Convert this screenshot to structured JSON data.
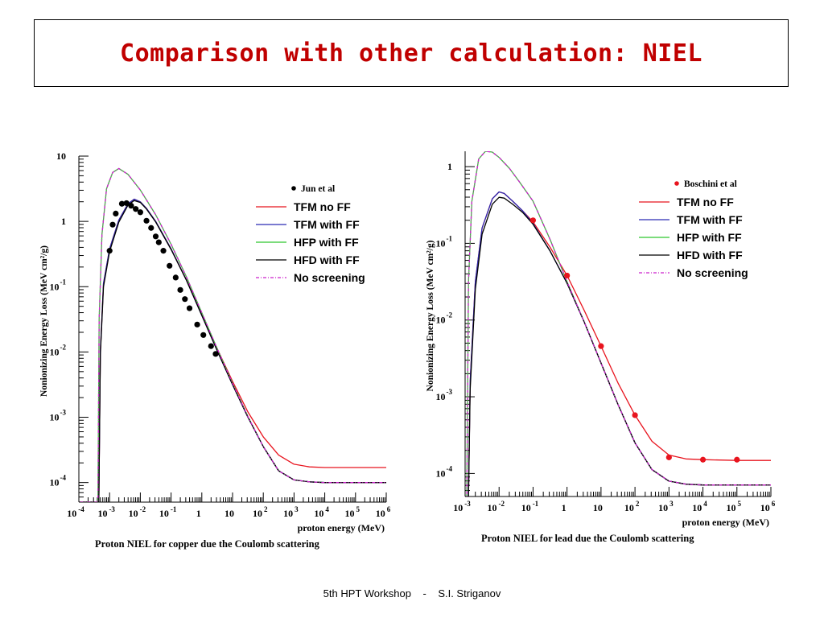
{
  "slide": {
    "title": "Comparison with other calculation: NIEL",
    "footer_workshop": "5th HPT Workshop",
    "footer_separator": "-",
    "footer_author": "S.I. Striganov"
  },
  "colors": {
    "title": "#c00000",
    "tfm_no_ff": "#e8141e",
    "tfm_with_ff": "#2a2ab4",
    "hfp_with_ff": "#2ec82e",
    "hfd_with_ff": "#000000",
    "no_screening": "#cc22cc"
  },
  "chart_data": [
    {
      "type": "line",
      "title": "Proton NIEL for copper due the Coulomb scattering",
      "xlabel": "proton energy (MeV)",
      "ylabel": "Nonionizing Energy Loss (MeV cm²/g)",
      "x_scale": "log",
      "y_scale": "log",
      "xlim_exp": [
        -4,
        6
      ],
      "ylim_exp": [
        -4.3,
        1
      ],
      "x_tick_labels": [
        {
          "exp": -4,
          "base": "10",
          "sup": "-4"
        },
        {
          "exp": -3,
          "base": "10",
          "sup": "-3"
        },
        {
          "exp": -2,
          "base": "10",
          "sup": "-2"
        },
        {
          "exp": -1,
          "base": "10",
          "sup": "-1"
        },
        {
          "exp": 0,
          "base": "1",
          "sup": ""
        },
        {
          "exp": 1,
          "base": "10",
          "sup": ""
        },
        {
          "exp": 2,
          "base": "10",
          "sup": "2"
        },
        {
          "exp": 3,
          "base": "10",
          "sup": "3"
        },
        {
          "exp": 4,
          "base": "10",
          "sup": "4"
        },
        {
          "exp": 5,
          "base": "10",
          "sup": "5"
        },
        {
          "exp": 6,
          "base": "10",
          "sup": "6"
        }
      ],
      "y_tick_labels": [
        {
          "exp": 1,
          "base": "10",
          "sup": ""
        },
        {
          "exp": 0,
          "base": "1",
          "sup": ""
        },
        {
          "exp": -1,
          "base": "10",
          "sup": "-1"
        },
        {
          "exp": -2,
          "base": "10",
          "sup": "-2"
        },
        {
          "exp": -3,
          "base": "10",
          "sup": "-3"
        },
        {
          "exp": -4,
          "base": "10",
          "sup": "-4"
        }
      ],
      "legend": {
        "placement": "top-right",
        "marker_label": "Jun et al",
        "marker_color": "#000000",
        "entries": [
          {
            "label": "TFM no FF",
            "color": "#e8141e",
            "dash": ""
          },
          {
            "label": "TFM with FF",
            "color": "#2a2ab4",
            "dash": ""
          },
          {
            "label": "HFP with FF",
            "color": "#2ec82e",
            "dash": ""
          },
          {
            "label": "HFD with FF",
            "color": "#000000",
            "dash": ""
          },
          {
            "label": "No screening",
            "color": "#cc22cc",
            "dash": "4,2,1,2"
          }
        ]
      },
      "points": {
        "name": "Jun et al",
        "log10_x": [
          -3.0,
          -2.9,
          -2.8,
          -2.6,
          -2.45,
          -2.3,
          -2.15,
          -2.0,
          -1.8,
          -1.65,
          -1.5,
          -1.4,
          -1.25,
          -1.05,
          -0.85,
          -0.7,
          -0.55,
          -0.4,
          -0.15,
          0.05,
          0.3,
          0.45
        ],
        "log10_y": [
          -0.45,
          -0.05,
          0.12,
          0.27,
          0.28,
          0.24,
          0.19,
          0.14,
          0.01,
          -0.1,
          -0.23,
          -0.32,
          -0.45,
          -0.68,
          -0.86,
          -1.05,
          -1.19,
          -1.33,
          -1.58,
          -1.74,
          -1.91,
          -2.03
        ]
      },
      "series": [
        {
          "name": "TFM no FF",
          "log10_x": [
            -4.2,
            -3.35,
            -3.3,
            -3.2,
            -3.0,
            -2.7,
            -2.4,
            -2.2,
            -2.0,
            -1.8,
            -1.5,
            -1.0,
            -0.5,
            0,
            0.5,
            1,
            1.5,
            2,
            2.5,
            3,
            3.5,
            4,
            5,
            6
          ],
          "log10_y": [
            -4.3,
            -4.3,
            -2.0,
            -0.95,
            -0.42,
            0.02,
            0.27,
            0.34,
            0.3,
            0.2,
            0.0,
            -0.42,
            -0.9,
            -1.43,
            -1.95,
            -2.45,
            -2.92,
            -3.3,
            -3.58,
            -3.72,
            -3.76,
            -3.77,
            -3.77,
            -3.77
          ]
        },
        {
          "name": "TFM with FF",
          "log10_x": [
            -4.2,
            -3.35,
            -3.3,
            -3.2,
            -3.0,
            -2.7,
            -2.4,
            -2.2,
            -2.0,
            -1.8,
            -1.5,
            -1.0,
            -0.5,
            0,
            0.5,
            1,
            1.5,
            2,
            2.5,
            3,
            3.5,
            4,
            5,
            6
          ],
          "log10_y": [
            -4.3,
            -4.3,
            -2.0,
            -0.95,
            -0.42,
            0.02,
            0.27,
            0.34,
            0.3,
            0.2,
            0.0,
            -0.42,
            -0.9,
            -1.44,
            -1.98,
            -2.5,
            -3.0,
            -3.45,
            -3.82,
            -3.96,
            -3.99,
            -4.0,
            -4.0,
            -4.0
          ]
        },
        {
          "name": "HFP with FF",
          "log10_x": [
            -4.2,
            -3.38,
            -3.34,
            -3.25,
            -3.1,
            -2.9,
            -2.7,
            -2.4,
            -2.2,
            -2.0,
            -1.8,
            -1.5,
            -1.0,
            -0.5,
            0,
            0.5,
            1,
            1.5,
            2,
            2.5,
            3,
            3.5,
            4,
            5,
            6
          ],
          "log10_y": [
            -4.3,
            -4.3,
            -1.5,
            -0.2,
            0.5,
            0.75,
            0.81,
            0.72,
            0.6,
            0.48,
            0.33,
            0.1,
            -0.35,
            -0.85,
            -1.4,
            -1.95,
            -2.48,
            -2.99,
            -3.45,
            -3.82,
            -3.96,
            -3.99,
            -4.0,
            -4.0,
            -4.0
          ]
        },
        {
          "name": "HFD with FF",
          "log10_x": [
            -4.2,
            -3.35,
            -3.3,
            -3.2,
            -3.0,
            -2.7,
            -2.4,
            -2.2,
            -2.0,
            -1.8,
            -1.5,
            -1.0,
            -0.5,
            0,
            0.5,
            1,
            1.5,
            2,
            2.5,
            3,
            3.5,
            4,
            5,
            6
          ],
          "log10_y": [
            -4.3,
            -4.3,
            -2.05,
            -1.0,
            -0.46,
            -0.01,
            0.25,
            0.32,
            0.29,
            0.19,
            -0.01,
            -0.43,
            -0.9,
            -1.44,
            -1.98,
            -2.5,
            -3.0,
            -3.45,
            -3.82,
            -3.96,
            -3.99,
            -4.0,
            -4.0,
            -4.0
          ]
        },
        {
          "name": "No screening",
          "log10_x": [
            -4.2,
            -3.38,
            -3.34,
            -3.25,
            -3.1,
            -2.9,
            -2.7,
            -2.4,
            -2.2,
            -2.0,
            -1.8,
            -1.5,
            -1.0,
            -0.5,
            0,
            0.5,
            1,
            1.5,
            2,
            2.5,
            3,
            3.5,
            4,
            5,
            6
          ],
          "log10_y": [
            -4.3,
            -4.3,
            -1.5,
            -0.2,
            0.5,
            0.75,
            0.81,
            0.72,
            0.6,
            0.48,
            0.33,
            0.1,
            -0.35,
            -0.85,
            -1.4,
            -1.95,
            -2.48,
            -2.99,
            -3.45,
            -3.82,
            -3.96,
            -3.99,
            -4.0,
            -4.0,
            -4.0
          ]
        }
      ]
    },
    {
      "type": "line",
      "title": "Proton NIEL for lead due the Coulomb scattering",
      "xlabel": "proton energy (MeV)",
      "ylabel": "Nonionizing Energy Loss (MeV cm²/g)",
      "x_scale": "log",
      "y_scale": "log",
      "xlim_exp": [
        -3,
        6
      ],
      "ylim_exp": [
        -4.3,
        0.2
      ],
      "x_tick_labels": [
        {
          "exp": -3,
          "base": "10",
          "sup": "-3"
        },
        {
          "exp": -2,
          "base": "10",
          "sup": "-2"
        },
        {
          "exp": -1,
          "base": "10",
          "sup": "-1"
        },
        {
          "exp": 0,
          "base": "1",
          "sup": ""
        },
        {
          "exp": 1,
          "base": "10",
          "sup": ""
        },
        {
          "exp": 2,
          "base": "10",
          "sup": "2"
        },
        {
          "exp": 3,
          "base": "10",
          "sup": "3"
        },
        {
          "exp": 4,
          "base": "10",
          "sup": "4"
        },
        {
          "exp": 5,
          "base": "10",
          "sup": "5"
        },
        {
          "exp": 6,
          "base": "10",
          "sup": "6"
        }
      ],
      "y_tick_labels": [
        {
          "exp": 0,
          "base": "1",
          "sup": ""
        },
        {
          "exp": -1,
          "base": "10",
          "sup": "-1"
        },
        {
          "exp": -2,
          "base": "10",
          "sup": "-2"
        },
        {
          "exp": -3,
          "base": "10",
          "sup": "-3"
        },
        {
          "exp": -4,
          "base": "10",
          "sup": "-4"
        }
      ],
      "legend": {
        "placement": "top-right",
        "marker_label": "Boschini et al",
        "marker_color": "#e8141e",
        "entries": [
          {
            "label": "TFM no FF",
            "color": "#e8141e",
            "dash": ""
          },
          {
            "label": "TFM with FF",
            "color": "#2a2ab4",
            "dash": ""
          },
          {
            "label": "HFP with FF",
            "color": "#2ec82e",
            "dash": ""
          },
          {
            "label": "HFD with FF",
            "color": "#000000",
            "dash": ""
          },
          {
            "label": "No screening",
            "color": "#cc22cc",
            "dash": "4,2,1,2"
          }
        ]
      },
      "points": {
        "name": "Boschini et al",
        "log10_x": [
          -1.0,
          0.0,
          1.0,
          2.0,
          3.0,
          4.0,
          5.0
        ],
        "log10_y": [
          -0.7,
          -1.42,
          -2.34,
          -3.24,
          -3.79,
          -3.82,
          -3.82
        ]
      },
      "series": [
        {
          "name": "TFM no FF",
          "log10_x": [
            -3.1,
            -2.9,
            -2.85,
            -2.7,
            -2.5,
            -2.2,
            -2.0,
            -1.85,
            -1.6,
            -1.3,
            -1.0,
            -0.5,
            0,
            0.5,
            1,
            1.5,
            2,
            2.5,
            3,
            3.5,
            4,
            5,
            6
          ],
          "log10_y": [
            -4.3,
            -4.3,
            -2.8,
            -1.5,
            -0.8,
            -0.42,
            -0.33,
            -0.35,
            -0.45,
            -0.58,
            -0.72,
            -1.05,
            -1.42,
            -1.87,
            -2.34,
            -2.82,
            -3.24,
            -3.58,
            -3.76,
            -3.81,
            -3.82,
            -3.83,
            -3.83
          ]
        },
        {
          "name": "TFM with FF",
          "log10_x": [
            -3.1,
            -2.9,
            -2.85,
            -2.7,
            -2.5,
            -2.2,
            -2.0,
            -1.85,
            -1.6,
            -1.3,
            -1.0,
            -0.5,
            0,
            0.5,
            1,
            1.5,
            2,
            2.5,
            3,
            3.5,
            4,
            5,
            6
          ],
          "log10_y": [
            -4.3,
            -4.3,
            -2.8,
            -1.5,
            -0.8,
            -0.42,
            -0.33,
            -0.35,
            -0.45,
            -0.58,
            -0.74,
            -1.1,
            -1.52,
            -2.02,
            -2.56,
            -3.1,
            -3.6,
            -3.95,
            -4.1,
            -4.14,
            -4.15,
            -4.15,
            -4.15
          ]
        },
        {
          "name": "HFP with FF",
          "log10_x": [
            -3.1,
            -2.95,
            -2.9,
            -2.8,
            -2.6,
            -2.4,
            -2.2,
            -2.0,
            -1.7,
            -1.4,
            -1.0,
            -0.5,
            0,
            0.5,
            1,
            1.5,
            2,
            2.5,
            3,
            3.5,
            4,
            5,
            6
          ],
          "log10_y": [
            -4.3,
            -4.3,
            -1.5,
            -0.45,
            0.1,
            0.2,
            0.19,
            0.12,
            -0.02,
            -0.2,
            -0.45,
            -0.95,
            -1.5,
            -2.02,
            -2.56,
            -3.1,
            -3.6,
            -3.95,
            -4.1,
            -4.14,
            -4.15,
            -4.15,
            -4.15
          ]
        },
        {
          "name": "HFD with FF",
          "log10_x": [
            -3.1,
            -2.9,
            -2.85,
            -2.7,
            -2.5,
            -2.2,
            -2.0,
            -1.85,
            -1.6,
            -1.3,
            -1.0,
            -0.5,
            0,
            0.5,
            1,
            1.5,
            2,
            2.5,
            3,
            3.5,
            4,
            5,
            6
          ],
          "log10_y": [
            -4.3,
            -4.3,
            -2.9,
            -1.6,
            -0.88,
            -0.49,
            -0.4,
            -0.41,
            -0.49,
            -0.6,
            -0.75,
            -1.1,
            -1.52,
            -2.02,
            -2.56,
            -3.1,
            -3.6,
            -3.95,
            -4.1,
            -4.14,
            -4.15,
            -4.15,
            -4.15
          ]
        },
        {
          "name": "No screening",
          "log10_x": [
            -3.1,
            -2.95,
            -2.9,
            -2.8,
            -2.6,
            -2.4,
            -2.2,
            -2.0,
            -1.7,
            -1.4,
            -1.0,
            -0.5,
            0,
            0.5,
            1,
            1.5,
            2,
            2.5,
            3,
            3.5,
            4,
            5,
            6
          ],
          "log10_y": [
            -4.3,
            -4.3,
            -1.5,
            -0.45,
            0.1,
            0.2,
            0.19,
            0.12,
            -0.02,
            -0.2,
            -0.45,
            -0.95,
            -1.5,
            -2.02,
            -2.56,
            -3.1,
            -3.6,
            -3.95,
            -4.1,
            -4.14,
            -4.15,
            -4.15,
            -4.15
          ]
        }
      ]
    }
  ]
}
